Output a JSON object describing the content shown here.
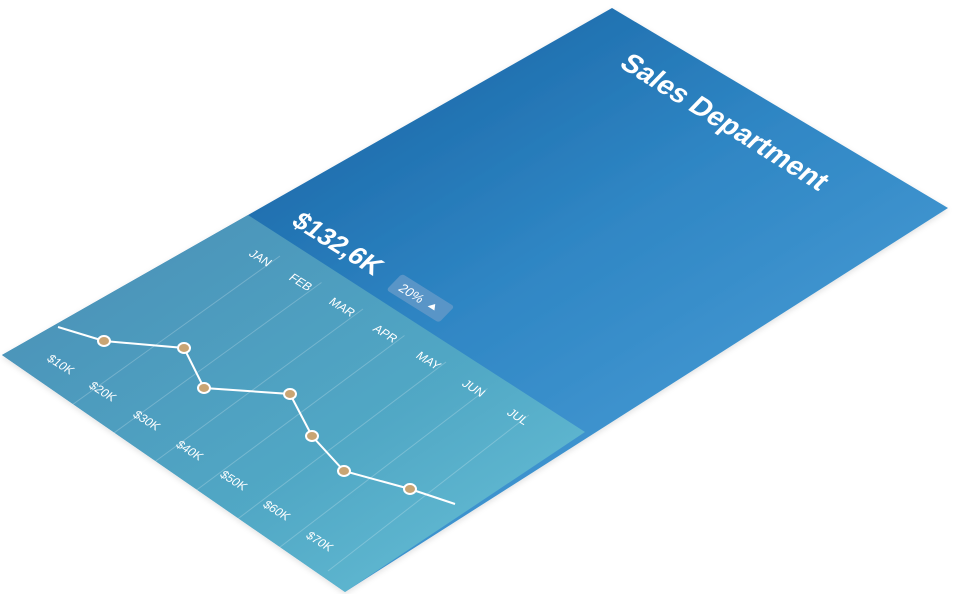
{
  "header": {
    "title": "Sales Department"
  },
  "summary": {
    "total": "$132,6K",
    "change": "20%",
    "change_icon": "triangle-up-icon"
  },
  "colors": {
    "card_top": "#0a5597",
    "card_mid": "#3384c8",
    "card_bottom": "#5aa8e0",
    "chart_panel": "#57b3cc",
    "point_fill": "#c9a574",
    "line": "#ffffff"
  },
  "chart_data": {
    "type": "line",
    "months": [
      "JAN",
      "FEB",
      "MAR",
      "APR",
      "MAY",
      "JUN",
      "JUL"
    ],
    "value_ticks": [
      "$10K",
      "$20K",
      "$30K",
      "$40K",
      "$50K",
      "$60K",
      "$70K"
    ],
    "points": [
      {
        "x": "$20K",
        "y": "JAN"
      },
      {
        "x": "$30K",
        "y": "MAR"
      },
      {
        "x": "$30K",
        "y": "APR"
      },
      {
        "x": "$40K",
        "y": "JUN"
      },
      {
        "x": "$50K",
        "y": "JUN"
      },
      {
        "x": "$50K",
        "y": "JUL"
      },
      {
        "x": "$60K",
        "y": "JUL"
      }
    ],
    "grid": true
  }
}
